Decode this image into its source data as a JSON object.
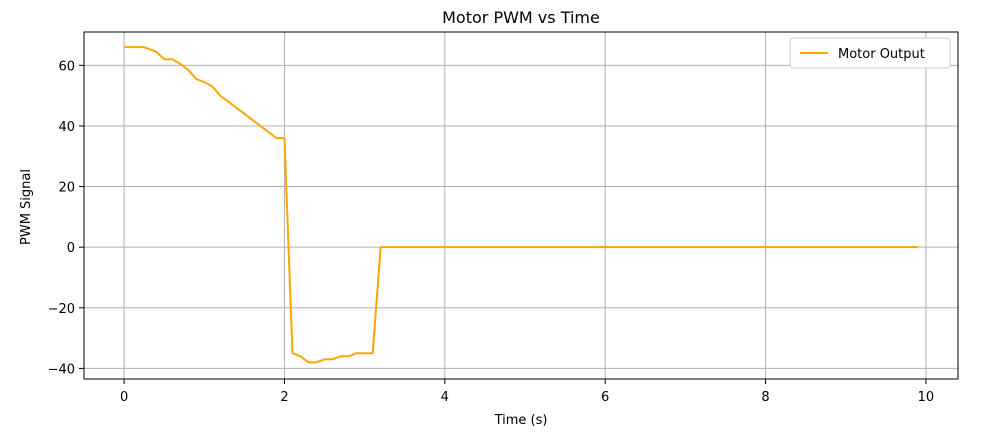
{
  "chart_data": {
    "type": "line",
    "title": "Motor PWM vs Time",
    "xlabel": "Time (s)",
    "ylabel": "PWM Signal",
    "xlim": [
      -0.5,
      10.4
    ],
    "ylim": [
      -43.5,
      71
    ],
    "xticks": [
      0,
      2,
      4,
      6,
      8,
      10
    ],
    "yticks": [
      -40,
      -20,
      0,
      20,
      40,
      60
    ],
    "xtick_labels": [
      "0",
      "2",
      "4",
      "6",
      "8",
      "10"
    ],
    "ytick_labels": [
      "−40",
      "−20",
      "0",
      "20",
      "40",
      "60"
    ],
    "grid": true,
    "legend_position": "top-right",
    "series": [
      {
        "name": "Motor Output",
        "color": "#ffa500",
        "x": [
          0,
          0.1,
          0.2,
          0.25,
          0.3,
          0.4,
          0.5,
          0.6,
          0.7,
          0.8,
          0.9,
          1.0,
          1.1,
          1.2,
          1.3,
          1.4,
          1.5,
          1.6,
          1.7,
          1.8,
          1.9,
          2.0,
          2.1,
          2.2,
          2.3,
          2.4,
          2.5,
          2.6,
          2.7,
          2.8,
          2.9,
          3.0,
          3.1,
          3.2,
          3.3,
          4,
          5,
          6,
          7,
          8,
          9,
          9.9
        ],
        "values": [
          66,
          66,
          66,
          66,
          65.5,
          64.5,
          62,
          62,
          60.5,
          58.5,
          55.5,
          54.5,
          53,
          50,
          48,
          46,
          44,
          42,
          40,
          38,
          36,
          36,
          -35,
          -36,
          -38,
          -38,
          -37,
          -37,
          -36,
          -36,
          -35,
          -35,
          -35,
          0,
          0,
          0,
          0,
          0,
          0,
          0,
          0,
          0
        ]
      }
    ]
  }
}
